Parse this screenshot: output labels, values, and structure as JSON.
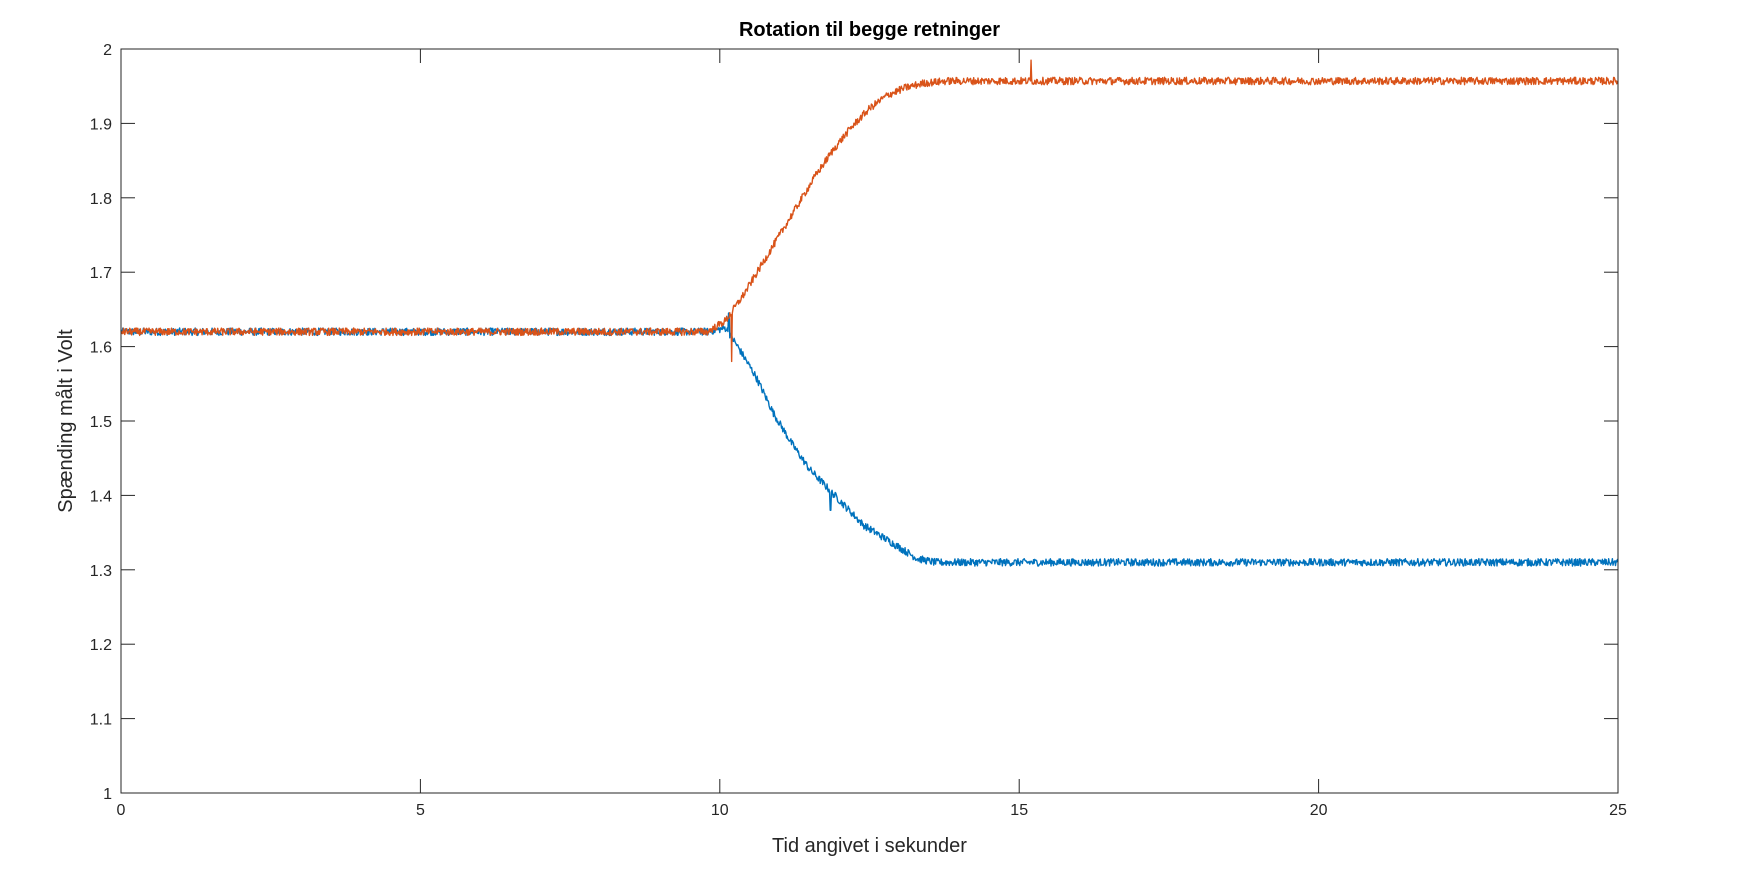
{
  "chart_data": {
    "type": "line",
    "title": "Rotation til begge retninger",
    "xlabel": "Tid angivet i sekunder",
    "ylabel": "Spænding målt i Volt",
    "xlim": [
      0,
      25
    ],
    "ylim": [
      1,
      2
    ],
    "xticks": [
      0,
      5,
      10,
      15,
      20,
      25
    ],
    "yticks": [
      1,
      1.1,
      1.2,
      1.3,
      1.4,
      1.5,
      1.6,
      1.7,
      1.8,
      1.9,
      2
    ],
    "xtick_labels": [
      "0",
      "5",
      "10",
      "15",
      "20",
      "25"
    ],
    "ytick_labels": [
      "1",
      "1.1",
      "1.2",
      "1.3",
      "1.4",
      "1.5",
      "1.6",
      "1.7",
      "1.8",
      "1.9",
      "2"
    ],
    "grid": false,
    "legend": "none",
    "series": [
      {
        "color": "#0072BD",
        "x": [
          0,
          2,
          4,
          6,
          8,
          9.8,
          10.1,
          10.3,
          10.6,
          10.9,
          11.2,
          11.5,
          11.8,
          12.1,
          12.4,
          12.7,
          13.0,
          13.3,
          13.6,
          14,
          15,
          17,
          20,
          22.5,
          25
        ],
        "y": [
          1.62,
          1.62,
          1.62,
          1.62,
          1.62,
          1.62,
          1.625,
          1.6,
          1.56,
          1.51,
          1.47,
          1.435,
          1.41,
          1.385,
          1.36,
          1.345,
          1.33,
          1.315,
          1.31,
          1.31,
          1.31,
          1.31,
          1.31,
          1.31,
          1.31
        ],
        "noise": 0.005,
        "spikes": [
          {
            "x": 10.15,
            "y": 1.645
          },
          {
            "x": 11.85,
            "y": 1.38
          }
        ]
      },
      {
        "color": "#D95319",
        "x": [
          0,
          2,
          4,
          6,
          8,
          9.8,
          10.1,
          10.4,
          10.7,
          11.0,
          11.3,
          11.6,
          11.9,
          12.2,
          12.5,
          12.8,
          13.1,
          13.4,
          13.8,
          14.2,
          15,
          17,
          20,
          22.5,
          25
        ],
        "y": [
          1.62,
          1.62,
          1.62,
          1.62,
          1.62,
          1.62,
          1.635,
          1.67,
          1.71,
          1.75,
          1.79,
          1.83,
          1.865,
          1.895,
          1.92,
          1.938,
          1.948,
          1.954,
          1.957,
          1.957,
          1.957,
          1.957,
          1.957,
          1.957,
          1.957
        ],
        "noise": 0.005,
        "spikes": [
          {
            "x": 10.2,
            "y": 1.58
          },
          {
            "x": 15.2,
            "y": 1.985
          }
        ]
      }
    ]
  }
}
